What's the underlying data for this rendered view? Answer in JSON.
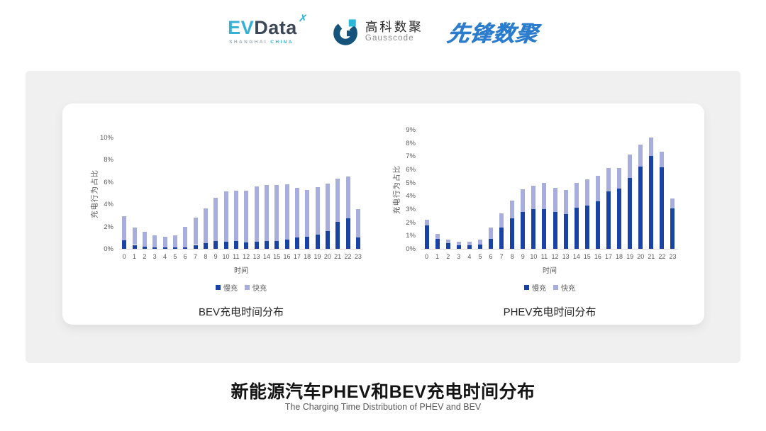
{
  "header": {
    "evdata": {
      "part1": "EV",
      "part2": "Data",
      "sub1": "SHANGHAI ",
      "sub2": "CHINA"
    },
    "gausscode": {
      "cn": "高科数聚",
      "en": "Gausscode"
    },
    "xianfeng": {
      "text": "先锋数聚"
    }
  },
  "footer": {
    "title": "新能源汽车PHEV和BEV充电时间分布",
    "subtitle": "The Charging Time Distribution of PHEV and BEV"
  },
  "colors": {
    "slow_blue": "#1942a5",
    "fast_blue": "#a7aedd",
    "accent_cyan": "#36b1d6",
    "gauss_navy": "#15537a",
    "xianfeng_blue": "#2b7ccc",
    "panel_gray": "#f0f0f1"
  },
  "chart_data": [
    {
      "type": "stacked-bar",
      "title": "BEV充电时间分布",
      "xlabel": "时间",
      "ylabel": "充电行为占比",
      "ylim": [
        0,
        10
      ],
      "ytick_step": 2,
      "ytick_suffix": "%",
      "grid": false,
      "legend_position": "bottom",
      "categories": [
        0,
        1,
        2,
        3,
        4,
        5,
        6,
        7,
        8,
        9,
        10,
        11,
        12,
        13,
        14,
        15,
        16,
        17,
        18,
        19,
        20,
        21,
        22,
        23
      ],
      "series": [
        {
          "name": "慢充",
          "color": "#1942a5",
          "values": [
            0.75,
            0.35,
            0.2,
            0.15,
            0.1,
            0.1,
            0.15,
            0.35,
            0.5,
            0.7,
            0.65,
            0.7,
            0.6,
            0.65,
            0.7,
            0.7,
            0.85,
            1.0,
            1.1,
            1.3,
            1.6,
            2.4,
            2.75,
            1.0
          ]
        },
        {
          "name": "快充",
          "color": "#a7aedd",
          "values": [
            2.15,
            1.55,
            1.3,
            1.05,
            1.0,
            1.1,
            1.85,
            2.45,
            3.1,
            3.9,
            4.5,
            4.5,
            4.6,
            4.95,
            5.05,
            5.05,
            4.95,
            4.45,
            4.2,
            4.25,
            4.25,
            3.9,
            3.75,
            2.55
          ]
        }
      ]
    },
    {
      "type": "stacked-bar",
      "title": "PHEV充电时间分布",
      "xlabel": "时间",
      "ylabel": "充电行为占比",
      "ylim": [
        0,
        9
      ],
      "ytick_step": 1,
      "ytick_suffix": "%",
      "grid": false,
      "legend_position": "bottom",
      "categories": [
        0,
        1,
        2,
        3,
        4,
        5,
        6,
        7,
        8,
        9,
        10,
        11,
        12,
        13,
        14,
        15,
        16,
        17,
        18,
        19,
        20,
        21,
        22,
        23
      ],
      "series": [
        {
          "name": "慢充",
          "color": "#1942a5",
          "values": [
            1.75,
            0.75,
            0.45,
            0.25,
            0.25,
            0.3,
            0.75,
            1.6,
            2.3,
            2.8,
            3.0,
            3.0,
            2.8,
            2.65,
            3.1,
            3.25,
            3.6,
            4.35,
            4.55,
            5.35,
            6.2,
            7.0,
            6.15,
            3.05
          ]
        },
        {
          "name": "快充",
          "color": "#a7aedd",
          "values": [
            0.45,
            0.4,
            0.25,
            0.3,
            0.3,
            0.4,
            0.85,
            1.1,
            1.35,
            1.7,
            1.75,
            2.0,
            1.8,
            1.8,
            1.9,
            2.0,
            1.9,
            1.75,
            1.55,
            1.75,
            1.7,
            1.4,
            1.2,
            0.75
          ]
        }
      ]
    }
  ]
}
